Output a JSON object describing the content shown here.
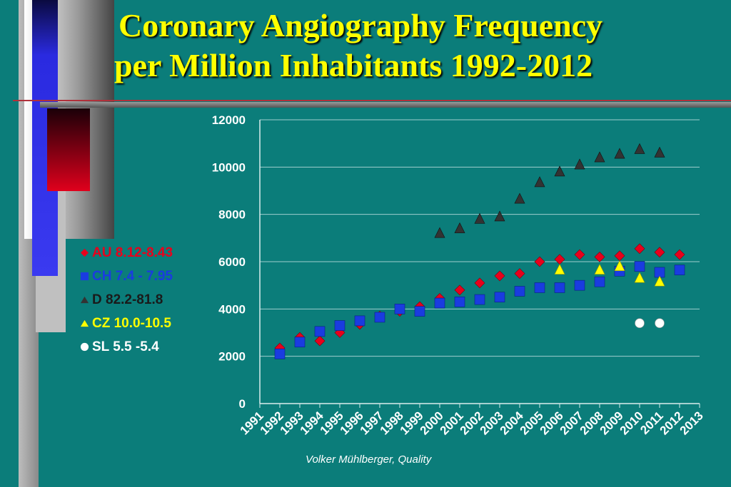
{
  "slide": {
    "title_line1": "Coronary Angiography Frequency",
    "title_line2": "per Million Inhabitants 1992-2012",
    "footer": "Volker Mühlberger, Quality"
  },
  "legend": [
    {
      "label": "AU 8.12-8.43",
      "color": "#e8001c",
      "shape": "diamond"
    },
    {
      "label": "CH 7.4 - 7.95",
      "color": "#1a3ce0",
      "shape": "square"
    },
    {
      "label": "D 82.2-81.8",
      "color": "#333333",
      "shape": "triangle"
    },
    {
      "label": "CZ 10.0-10.5",
      "color": "#ffff00",
      "shape": "triangle"
    },
    {
      "label": "SL 5.5 -5.4",
      "color": "#ffffff",
      "shape": "circle"
    }
  ],
  "chart_data": {
    "type": "scatter",
    "x_ticks": [
      "1991",
      "1992",
      "1993",
      "1994",
      "1995",
      "1996",
      "1997",
      "1998",
      "1999",
      "2000",
      "2001",
      "2002",
      "2003",
      "2004",
      "2005",
      "2006",
      "2007",
      "2008",
      "2009",
      "2010",
      "2011",
      "2012",
      "2013"
    ],
    "y_ticks": [
      "0",
      "2000",
      "4000",
      "6000",
      "8000",
      "10000",
      "12000"
    ],
    "xlim": [
      1991,
      2013
    ],
    "ylim": [
      0,
      12000
    ],
    "grid": true,
    "series": [
      {
        "name": "AU 8.12-8.43",
        "color": "#e8001c",
        "shape": "diamond",
        "points": [
          [
            1992,
            2350
          ],
          [
            1993,
            2800
          ],
          [
            1994,
            2650
          ],
          [
            1995,
            3000
          ],
          [
            1996,
            3350
          ],
          [
            1997,
            3700
          ],
          [
            1998,
            3900
          ],
          [
            1999,
            4100
          ],
          [
            2000,
            4450
          ],
          [
            2001,
            4800
          ],
          [
            2002,
            5100
          ],
          [
            2003,
            5400
          ],
          [
            2004,
            5500
          ],
          [
            2005,
            6000
          ],
          [
            2006,
            6100
          ],
          [
            2007,
            6300
          ],
          [
            2008,
            6200
          ],
          [
            2009,
            6250
          ],
          [
            2010,
            6550
          ],
          [
            2011,
            6400
          ],
          [
            2012,
            6300
          ]
        ]
      },
      {
        "name": "CH 7.4 - 7.95",
        "color": "#1a3ce0",
        "shape": "square",
        "points": [
          [
            1992,
            2100
          ],
          [
            1993,
            2600
          ],
          [
            1994,
            3050
          ],
          [
            1995,
            3300
          ],
          [
            1996,
            3500
          ],
          [
            1997,
            3650
          ],
          [
            1998,
            4000
          ],
          [
            1999,
            3900
          ],
          [
            2000,
            4250
          ],
          [
            2001,
            4300
          ],
          [
            2002,
            4400
          ],
          [
            2003,
            4500
          ],
          [
            2004,
            4750
          ],
          [
            2005,
            4900
          ],
          [
            2006,
            4900
          ],
          [
            2007,
            5000
          ],
          [
            2008,
            5150
          ],
          [
            2009,
            5600
          ],
          [
            2010,
            5800
          ],
          [
            2011,
            5550
          ],
          [
            2012,
            5650
          ]
        ]
      },
      {
        "name": "D 82.2-81.8",
        "color": "#333333",
        "shape": "triangle",
        "points": [
          [
            2000,
            7200
          ],
          [
            2001,
            7400
          ],
          [
            2002,
            7800
          ],
          [
            2003,
            7900
          ],
          [
            2004,
            8650
          ],
          [
            2005,
            9350
          ],
          [
            2006,
            9800
          ],
          [
            2007,
            10100
          ],
          [
            2008,
            10400
          ],
          [
            2009,
            10550
          ],
          [
            2010,
            10750
          ],
          [
            2011,
            10600
          ]
        ]
      },
      {
        "name": "CZ 10.0-10.5",
        "color": "#ffff00",
        "shape": "triangle",
        "points": [
          [
            2006,
            5650
          ],
          [
            2008,
            5650
          ],
          [
            2009,
            5800
          ],
          [
            2010,
            5300
          ],
          [
            2011,
            5150
          ]
        ]
      },
      {
        "name": "SL 5.5 -5.4",
        "color": "#ffffff",
        "shape": "circle",
        "points": [
          [
            2010,
            3400
          ],
          [
            2011,
            3400
          ]
        ]
      }
    ]
  }
}
